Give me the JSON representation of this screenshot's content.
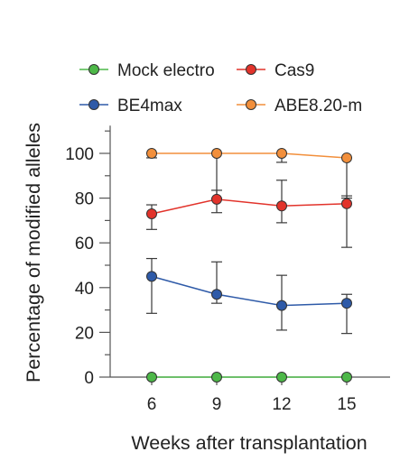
{
  "chart_data": {
    "type": "line",
    "xlabel": "Weeks after transplantation",
    "ylabel": "Percentage of modified alleles",
    "x": [
      6,
      9,
      12,
      15
    ],
    "xticks": [
      "6",
      "9",
      "12",
      "15"
    ],
    "yticks": [
      "0",
      "20",
      "40",
      "60",
      "80",
      "100"
    ],
    "ylim": [
      0,
      110
    ],
    "grid": false,
    "legend_position": "top",
    "series": [
      {
        "name": "Mock electro",
        "color": "#4db848",
        "values": [
          0,
          0,
          0,
          0
        ],
        "err_low": [
          0,
          0,
          0,
          0
        ],
        "err_high": [
          0,
          0,
          0,
          0
        ]
      },
      {
        "name": "Cas9",
        "color": "#e2332b",
        "values": [
          73,
          79.5,
          76.5,
          77.5
        ],
        "err_low": [
          66,
          73.5,
          69,
          58
        ],
        "err_high": [
          77,
          83.5,
          88,
          81
        ]
      },
      {
        "name": "BE4max",
        "color": "#2e5aa8",
        "values": [
          45,
          37,
          32,
          33
        ],
        "err_low": [
          28.5,
          33,
          21,
          19.5
        ],
        "err_high": [
          53,
          51.5,
          45.5,
          37
        ]
      },
      {
        "name": "ABE8.20-m",
        "color": "#f28f3b",
        "values": [
          100,
          100,
          100,
          98
        ],
        "err_low": [
          98,
          80,
          96,
          80
        ],
        "err_high": [
          100,
          100,
          100,
          98
        ]
      }
    ]
  }
}
